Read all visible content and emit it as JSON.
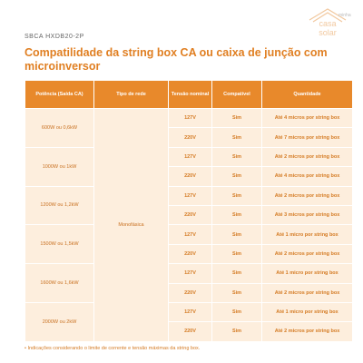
{
  "header": {
    "code": "SBCA HXDB20-2P",
    "title": "Compatilidade da string box CA ou caixa de junção com microinversor"
  },
  "logo": {
    "top": "minha",
    "middle": "casa",
    "bottom": "solar"
  },
  "table": {
    "columns": [
      "Potência (Saída CA)",
      "Tipo de rede",
      "Tensão nominal",
      "Compatível",
      "Quantidade"
    ],
    "network": "Monofásica",
    "groups": [
      {
        "power": "600W ou 0,6kW",
        "rows": [
          [
            "127V",
            "Sim",
            "Até 4 micros por string box"
          ],
          [
            "220V",
            "Sim",
            "Até 7 micros por string box"
          ]
        ]
      },
      {
        "power": "1000W ou 1kW",
        "rows": [
          [
            "127V",
            "Sim",
            "Até 2 micros por string box"
          ],
          [
            "220V",
            "Sim",
            "Até 4 micros por string box"
          ]
        ]
      },
      {
        "power": "1200W ou 1,2kW",
        "rows": [
          [
            "127V",
            "Sim",
            "Até 2 micros por string box"
          ],
          [
            "220V",
            "Sim",
            "Até 3 micros por string box"
          ]
        ]
      },
      {
        "power": "1500W ou 1,5kW",
        "rows": [
          [
            "127V",
            "Sim",
            "Até 1 micro por string box"
          ],
          [
            "220V",
            "Sim",
            "Até 2 micros por string box"
          ]
        ]
      },
      {
        "power": "1600W ou 1,6kW",
        "rows": [
          [
            "127V",
            "Sim",
            "Até 1 micro por string box"
          ],
          [
            "220V",
            "Sim",
            "Até 2 micros por string box"
          ]
        ]
      },
      {
        "power": "2000W ou 2kW",
        "rows": [
          [
            "127V",
            "Sim",
            "Até 1 micro por string box"
          ],
          [
            "220V",
            "Sim",
            "Até 2 micros por string box"
          ]
        ]
      }
    ]
  },
  "footnote": "• Indicações considerando o limite de corrente e tensão máximas da string box."
}
